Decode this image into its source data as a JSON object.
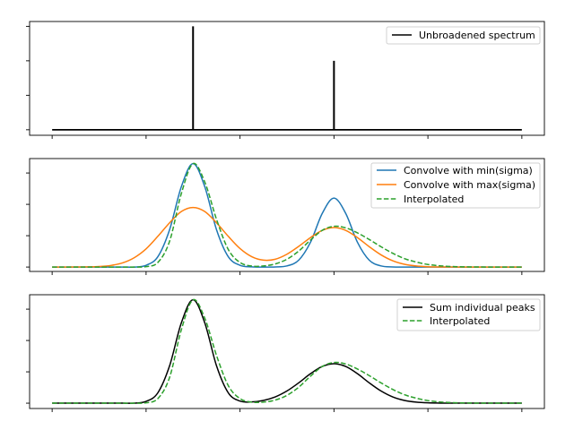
{
  "chart_data": [
    {
      "type": "line",
      "subtype": "stick-spectrum",
      "xlim": [
        -0.48,
        10.48
      ],
      "ylim": [
        -0.16,
        3.14
      ],
      "xticks": [
        0,
        2,
        4,
        6,
        8,
        10
      ],
      "yticks": [
        0,
        1,
        2,
        3
      ],
      "tick_labels_shown": false,
      "grid": false,
      "legend_placement": "upper right",
      "baseline": {
        "x": [
          0,
          10
        ],
        "y": 0
      },
      "sticks": [
        {
          "x": 3,
          "height": 3
        },
        {
          "x": 6,
          "height": 2
        }
      ],
      "series": [
        {
          "name": "Unbroadened spectrum",
          "color": "#000000",
          "style": "solid"
        }
      ]
    },
    {
      "type": "line",
      "xlim": [
        -0.48,
        10.48
      ],
      "ylim": [
        -0.14,
        3.46
      ],
      "xticks": [
        0,
        2,
        4,
        6,
        8,
        10
      ],
      "yticks": [
        0,
        1,
        2,
        3
      ],
      "tick_labels_shown": false,
      "grid": false,
      "legend_placement": "upper right",
      "x": {
        "start": 0,
        "step": 0.25,
        "count": 41
      },
      "series": [
        {
          "name": "Convolve with min(sigma)",
          "color": "#1f77b4",
          "style": "solid",
          "values": [
            0,
            0,
            0,
            0,
            0,
            0,
            0,
            0,
            0.056,
            0.33,
            1.19,
            2.56,
            3.3,
            2.56,
            1.19,
            0.33,
            0.056,
            0.006,
            0,
            0.004,
            0.037,
            0.22,
            0.79,
            1.71,
            2.2,
            1.71,
            0.79,
            0.22,
            0.037,
            0.004,
            0,
            0,
            0,
            0,
            0,
            0,
            0,
            0,
            0,
            0,
            0
          ]
        },
        {
          "name": "Convolve with max(sigma)",
          "color": "#ff7f0e",
          "style": "solid",
          "values": [
            0,
            0,
            0.001,
            0.005,
            0.017,
            0.051,
            0.133,
            0.3,
            0.58,
            0.98,
            1.41,
            1.77,
            1.9,
            1.77,
            1.41,
            0.98,
            0.59,
            0.33,
            0.22,
            0.25,
            0.41,
            0.66,
            0.94,
            1.17,
            1.26,
            1.17,
            0.94,
            0.65,
            0.39,
            0.2,
            0.088,
            0.034,
            0.011,
            0.003,
            0.001,
            0,
            0,
            0,
            0,
            0,
            0
          ]
        },
        {
          "name": "Interpolated",
          "color": "#2ca02c",
          "style": "dashed",
          "values": [
            0,
            0,
            0,
            0,
            0,
            0,
            0,
            0,
            0.013,
            0.145,
            0.82,
            2.34,
            3.3,
            2.71,
            1.52,
            0.56,
            0.145,
            0.033,
            0.034,
            0.099,
            0.25,
            0.51,
            0.86,
            1.17,
            1.3,
            1.25,
            1.09,
            0.88,
            0.65,
            0.44,
            0.27,
            0.16,
            0.082,
            0.039,
            0.017,
            0.007,
            0.003,
            0,
            0,
            0,
            0
          ]
        }
      ]
    },
    {
      "type": "line",
      "xlim": [
        -0.48,
        10.48
      ],
      "ylim": [
        -0.17,
        3.46
      ],
      "xticks": [
        0,
        2,
        4,
        6,
        8,
        10
      ],
      "yticks": [
        0,
        1,
        2,
        3
      ],
      "tick_labels_shown": false,
      "grid": false,
      "legend_placement": "upper right",
      "x": {
        "start": 0,
        "step": 0.25,
        "count": 41
      },
      "series": [
        {
          "name": "Sum individual peaks",
          "color": "#000000",
          "style": "solid",
          "values": [
            0,
            0,
            0,
            0,
            0,
            0,
            0,
            0,
            0.056,
            0.33,
            1.19,
            2.56,
            3.3,
            2.56,
            1.19,
            0.33,
            0.067,
            0.04,
            0.088,
            0.2,
            0.39,
            0.65,
            0.94,
            1.17,
            1.26,
            1.17,
            0.94,
            0.65,
            0.39,
            0.2,
            0.088,
            0.034,
            0.011,
            0.003,
            0,
            0,
            0,
            0,
            0,
            0,
            0
          ]
        },
        {
          "name": "Interpolated",
          "color": "#2ca02c",
          "style": "dashed",
          "values": [
            0,
            0,
            0,
            0,
            0,
            0,
            0,
            0,
            0.013,
            0.145,
            0.82,
            2.34,
            3.3,
            2.71,
            1.52,
            0.56,
            0.145,
            0.033,
            0.034,
            0.099,
            0.25,
            0.51,
            0.86,
            1.17,
            1.3,
            1.25,
            1.09,
            0.88,
            0.65,
            0.44,
            0.27,
            0.16,
            0.082,
            0.039,
            0.017,
            0.007,
            0.003,
            0,
            0,
            0,
            0
          ]
        }
      ]
    }
  ]
}
